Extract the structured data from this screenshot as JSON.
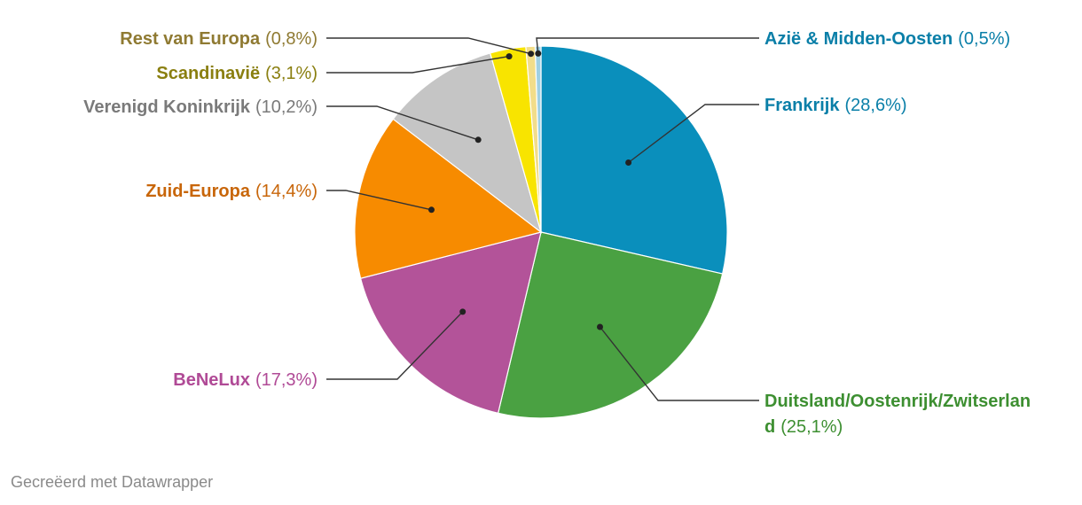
{
  "chart_data": {
    "type": "pie",
    "slices": [
      {
        "name": "Frankrijk",
        "value": 28.6,
        "pct_label": "(28,6%)",
        "color": "#0a8fbc",
        "name_color": "#0a7fa8"
      },
      {
        "name": "Duitsland/Oostenrijk/Zwitserland",
        "value": 25.1,
        "pct_label": "(25,1%)",
        "color": "#4aa142",
        "name_color": "#3d8f31"
      },
      {
        "name": "BeNeLux",
        "value": 17.3,
        "pct_label": "(17,3%)",
        "color": "#b35399",
        "name_color": "#b04a96"
      },
      {
        "name": "Zuid-Europa",
        "value": 14.4,
        "pct_label": "(14,4%)",
        "color": "#f78b00",
        "name_color": "#c8660a"
      },
      {
        "name": "Verenigd Koninkrijk",
        "value": 10.2,
        "pct_label": "(10,2%)",
        "color": "#c5c5c5",
        "name_color": "#7a7a7a"
      },
      {
        "name": "Scandinavië",
        "value": 3.1,
        "pct_label": "(3,1%)",
        "color": "#f8e400",
        "name_color": "#8a7f10"
      },
      {
        "name": "Rest van Europa",
        "value": 0.8,
        "pct_label": "(0,8%)",
        "color": "#f2dd8a",
        "name_color": "#8f7a32"
      },
      {
        "name": "Azië & Midden-Oosten",
        "value": 0.5,
        "pct_label": "(0,5%)",
        "color": "#9fd0e3",
        "name_color": "#0a7fa8"
      }
    ]
  },
  "footer": "Gecreëerd met Datawrapper"
}
